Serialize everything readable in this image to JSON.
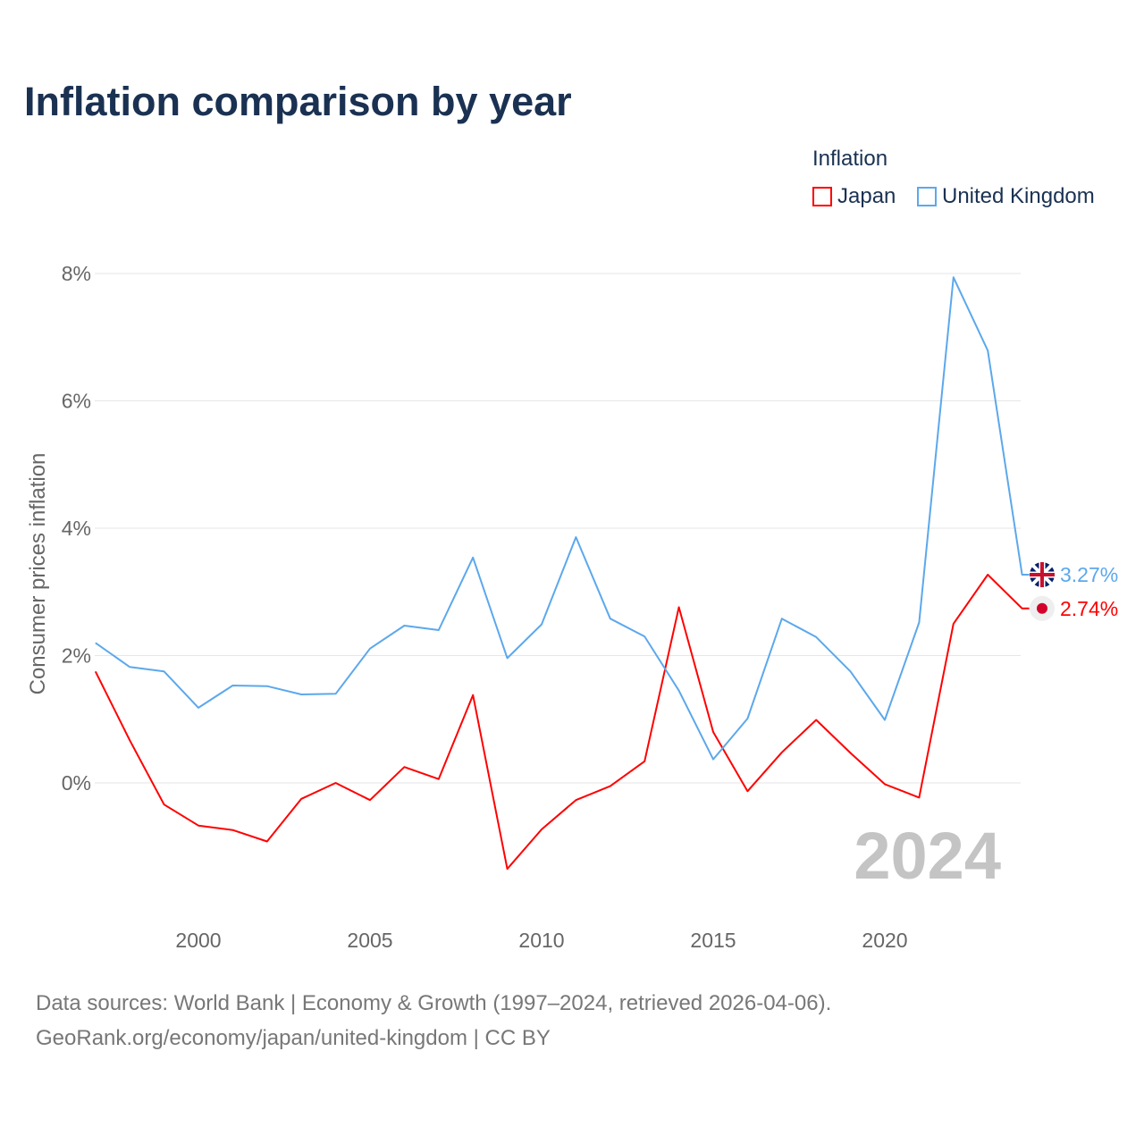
{
  "chart_data": {
    "type": "line",
    "title": "Inflation comparison by year",
    "legend_title": "Inflation",
    "legend_placement": "top-right",
    "ylabel": "Consumer prices inflation",
    "xlabel": "",
    "ylim": [
      -1.9,
      8.3
    ],
    "xlim": [
      1997,
      2024
    ],
    "yticks": [
      0,
      2,
      4,
      6,
      8
    ],
    "ytick_labels": [
      "0%",
      "2%",
      "4%",
      "6%",
      "8%"
    ],
    "xticks": [
      2000,
      2005,
      2010,
      2015,
      2020
    ],
    "xtick_labels": [
      "2000",
      "2005",
      "2010",
      "2015",
      "2020"
    ],
    "grid": true,
    "year_watermark": "2024",
    "x": [
      1997,
      1998,
      1999,
      2000,
      2001,
      2002,
      2003,
      2004,
      2005,
      2006,
      2007,
      2008,
      2009,
      2010,
      2011,
      2012,
      2013,
      2014,
      2015,
      2016,
      2017,
      2018,
      2019,
      2020,
      2021,
      2022,
      2023,
      2024
    ],
    "series": [
      {
        "name": "Japan",
        "color": "#ff0000",
        "end_label": "2.74%",
        "values": [
          1.75,
          0.67,
          -0.34,
          -0.67,
          -0.74,
          -0.92,
          -0.25,
          0.0,
          -0.27,
          0.25,
          0.06,
          1.38,
          -1.35,
          -0.73,
          -0.27,
          -0.05,
          0.34,
          2.76,
          0.8,
          -0.13,
          0.48,
          0.99,
          0.47,
          -0.02,
          -0.23,
          2.5,
          3.27,
          2.74
        ]
      },
      {
        "name": "United Kingdom",
        "color": "#5ca8ec",
        "end_label": "3.27%",
        "values": [
          2.2,
          1.82,
          1.75,
          1.18,
          1.53,
          1.52,
          1.39,
          1.4,
          2.11,
          2.47,
          2.4,
          3.54,
          1.96,
          2.49,
          3.86,
          2.58,
          2.3,
          1.45,
          0.37,
          1.01,
          2.58,
          2.29,
          1.75,
          0.99,
          2.52,
          7.94,
          6.79,
          3.27
        ]
      }
    ]
  },
  "footer": {
    "line1": "Data sources: World Bank | Economy & Growth (1997–2024, retrieved 2026-04-06).",
    "line2": "GeoRank.org/economy/japan/united-kingdom | CC BY"
  }
}
